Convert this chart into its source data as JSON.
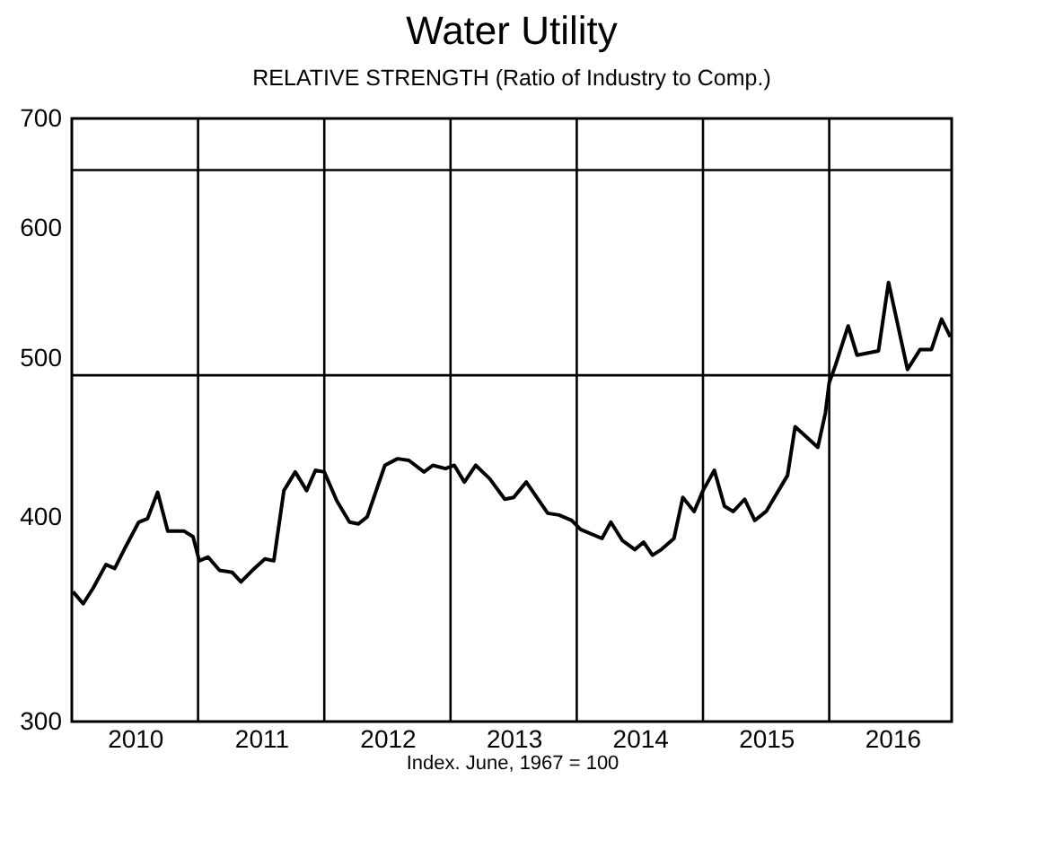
{
  "chart_data": {
    "type": "line",
    "title": "Water Utility",
    "subtitle": "RELATIVE STRENGTH (Ratio of Industry to Comp.)",
    "annotations": [
      "Index. June, 1967 = 100"
    ],
    "x": [
      2010.01,
      2010.09,
      2010.17,
      2010.27,
      2010.34,
      2010.43,
      2010.53,
      2010.6,
      2010.68,
      2010.76,
      2010.89,
      2010.96,
      2011.01,
      2011.08,
      2011.17,
      2011.27,
      2011.34,
      2011.43,
      2011.53,
      2011.6,
      2011.68,
      2011.77,
      2011.86,
      2011.93,
      2012.0,
      2012.1,
      2012.2,
      2012.27,
      2012.34,
      2012.48,
      2012.58,
      2012.67,
      2012.79,
      2012.86,
      2012.96,
      2013.03,
      2013.11,
      2013.2,
      2013.31,
      2013.43,
      2013.5,
      2013.6,
      2013.77,
      2013.86,
      2013.96,
      2014.03,
      2014.2,
      2014.27,
      2014.36,
      2014.46,
      2014.53,
      2014.6,
      2014.67,
      2014.77,
      2014.84,
      2014.93,
      2015.0,
      2015.09,
      2015.17,
      2015.24,
      2015.33,
      2015.41,
      2015.5,
      2015.67,
      2015.73,
      2015.84,
      2015.91,
      2015.97,
      2016.0,
      2016.05,
      2016.15,
      2016.22,
      2016.39,
      2016.47,
      2016.62,
      2016.72,
      2016.81,
      2016.89,
      2016.96
    ],
    "series": [
      {
        "color": "#000000",
        "values": [
          360,
          354,
          362,
          374,
          372,
          384,
          397,
          399,
          414,
          392,
          392,
          389,
          376,
          378,
          371,
          370,
          365,
          371,
          377,
          376,
          415,
          426,
          415,
          427,
          426,
          409,
          397,
          396,
          400,
          430,
          434,
          433,
          426,
          430,
          428,
          430,
          420,
          430,
          422,
          410,
          411,
          420,
          402,
          401,
          398,
          393,
          388,
          397,
          387,
          382,
          386,
          379,
          382,
          388,
          411,
          403,
          415,
          427,
          406,
          403,
          410,
          398,
          403,
          424,
          454,
          446,
          441,
          463,
          483,
          495,
          523,
          502,
          505,
          556,
          492,
          506,
          506,
          528,
          515
        ]
      }
    ],
    "log": true,
    "ylim": [
      300,
      700
    ],
    "yticks": [
      300,
      400,
      500,
      600,
      700
    ],
    "xlim": [
      2010,
      2016.97
    ],
    "xticks": [
      {
        "value": 2010.5,
        "label": "2010"
      },
      {
        "value": 2011.5,
        "label": "2011"
      },
      {
        "value": 2012.5,
        "label": "2012"
      },
      {
        "value": 2013.5,
        "label": "2013"
      },
      {
        "value": 2014.5,
        "label": "2014"
      },
      {
        "value": 2015.5,
        "label": "2015"
      },
      {
        "value": 2016.5,
        "label": "2016"
      }
    ],
    "ref_lines": [
      {
        "axis": "x",
        "value": 2011
      },
      {
        "axis": "x",
        "value": 2012
      },
      {
        "axis": "x",
        "value": 2013
      },
      {
        "axis": "x",
        "value": 2014
      },
      {
        "axis": "x",
        "value": 2015
      },
      {
        "axis": "x",
        "value": 2016
      },
      {
        "axis": "y",
        "value": 488
      },
      {
        "axis": "y",
        "value": 651
      }
    ]
  }
}
